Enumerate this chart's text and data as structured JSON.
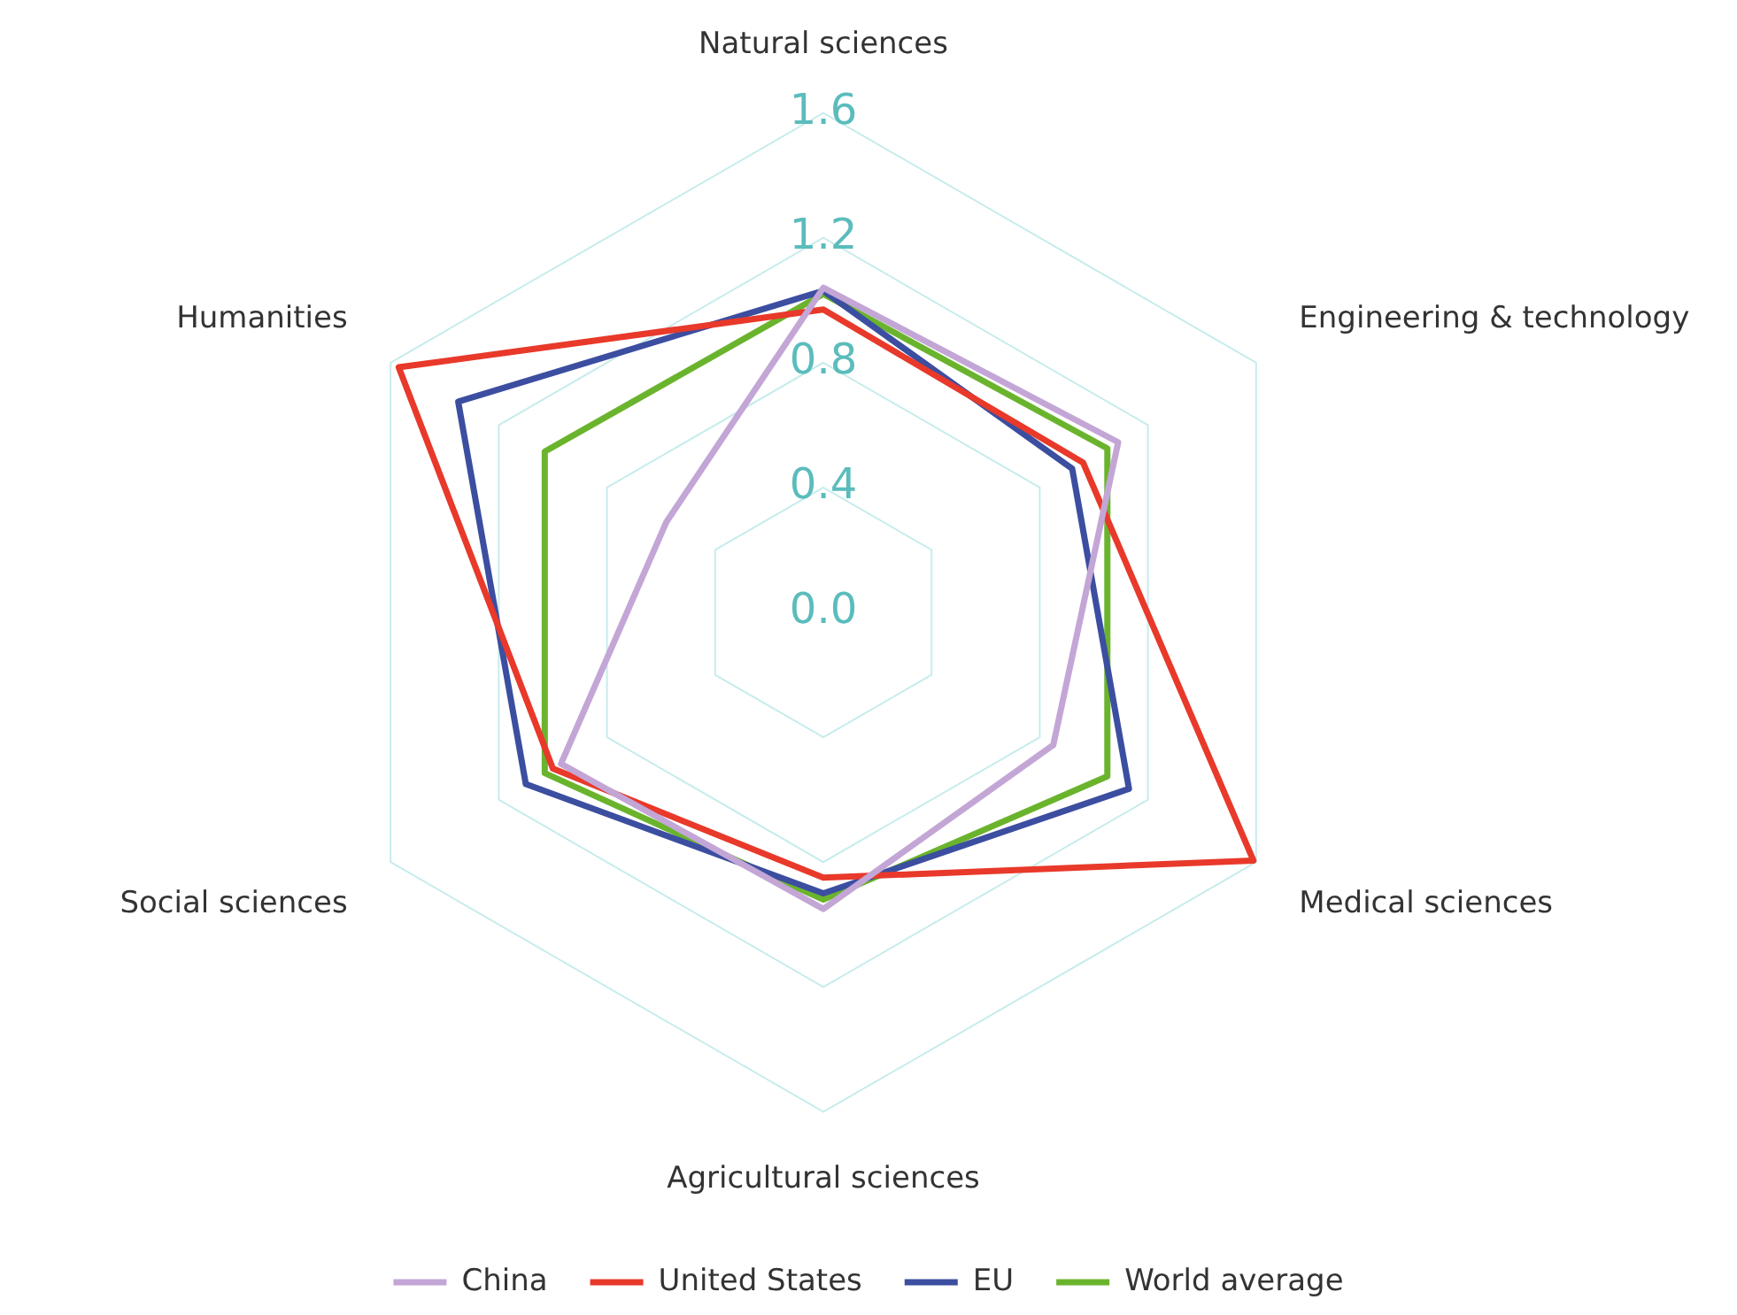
{
  "chart_data": {
    "type": "radar",
    "categories": [
      "Natural sciences",
      "Engineering & technology",
      "Medical sciences",
      "Agricultural sciences",
      "Social sciences",
      "Humanities"
    ],
    "series": [
      {
        "name": "China",
        "color": "#c3a6d6",
        "values": [
          1.04,
          1.09,
          0.85,
          0.95,
          0.97,
          0.58
        ]
      },
      {
        "name": "United States",
        "color": "#e8392a",
        "values": [
          0.97,
          0.96,
          1.59,
          0.85,
          1.0,
          1.57
        ]
      },
      {
        "name": "EU",
        "color": "#3c4ea0",
        "values": [
          1.03,
          0.92,
          1.13,
          0.9,
          1.1,
          1.35
        ]
      },
      {
        "name": "World average",
        "color": "#6ab42d",
        "values": [
          1.02,
          1.05,
          1.05,
          0.92,
          1.03,
          1.03
        ]
      }
    ],
    "ylim": [
      0,
      1.6
    ],
    "yticks": [
      {
        "value": 0,
        "label": "0.0"
      },
      0.4,
      0.8,
      1.2,
      1.6
    ],
    "grid": true,
    "legend": "bottom",
    "marker": "none",
    "line_style": "solid"
  }
}
